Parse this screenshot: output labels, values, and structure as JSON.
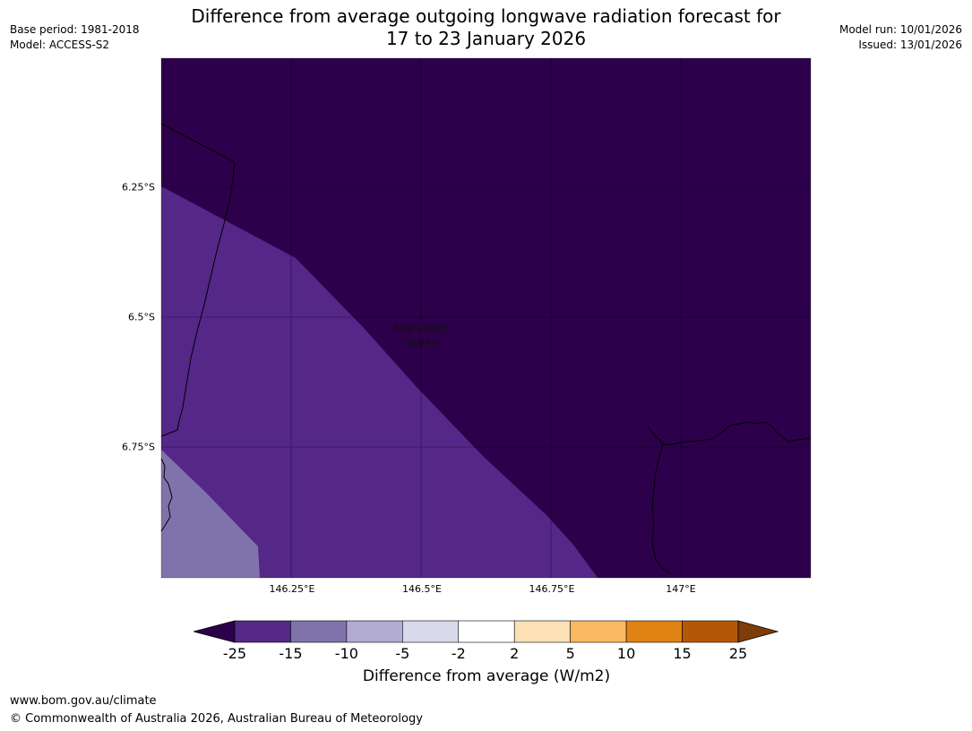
{
  "title_line1": "Difference from average outgoing longwave radiation forecast for",
  "title_line2": "17 to 23 January 2026",
  "meta_left": {
    "base_period": "Base period: 1981-2018",
    "model": "Model: ACCESS-S2"
  },
  "meta_right": {
    "model_run": "Model run: 10/01/2026",
    "issued": "Issued: 13/01/2026"
  },
  "map": {
    "lat_labels": [
      "6.25°S",
      "6.5°S",
      "6.75°S"
    ],
    "lon_labels": [
      "146.25°E",
      "146.5°E",
      "146.75°E",
      "147°E"
    ],
    "place": {
      "line1": "Markham",
      "line2": "Valley"
    },
    "region_colors": {
      "below_25": "#2d004b",
      "from_25_to_15": "#542788",
      "from_15_to_10": "#8073ac"
    }
  },
  "colorbar": {
    "title": "Difference from average (W/m2)",
    "ticks": [
      "-25",
      "-15",
      "-10",
      "-5",
      "-2",
      "2",
      "5",
      "10",
      "15",
      "25"
    ],
    "colors": [
      "#542788",
      "#8073ac",
      "#b2abd2",
      "#d8daeb",
      "#ffffff",
      "#fee0b6",
      "#fdb863",
      "#e08214",
      "#b35806"
    ],
    "extend_low_color": "#2d004b",
    "extend_high_color": "#7f3b08"
  },
  "footer": {
    "url": "www.bom.gov.au/climate",
    "copyright": "© Commonwealth of Australia 2026, Australian Bureau of Meteorology"
  }
}
